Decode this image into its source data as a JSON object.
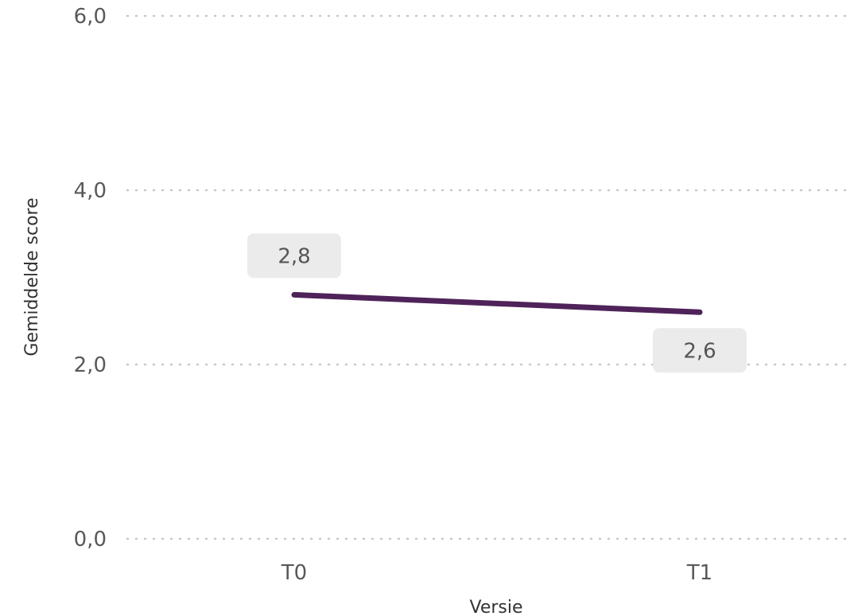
{
  "chart_data": {
    "type": "line",
    "categories": [
      "T0",
      "T1"
    ],
    "series": [
      {
        "values": [
          2.8,
          2.6
        ],
        "data_labels": [
          "2,8",
          "2,6"
        ]
      }
    ],
    "title": "",
    "xlabel": "Versie",
    "ylabel": "Gemiddelde score",
    "ylim": [
      0,
      6
    ],
    "yticks": [
      {
        "value": 0,
        "label": "0,0"
      },
      {
        "value": 2,
        "label": "2,0"
      },
      {
        "value": 4,
        "label": "4,0"
      },
      {
        "value": 6,
        "label": "6,0"
      }
    ],
    "grid": true,
    "legend": "none",
    "colors": {
      "line": "#4f2359",
      "label_bg": "#ebebeb",
      "grid": "#c8c8c8"
    }
  }
}
